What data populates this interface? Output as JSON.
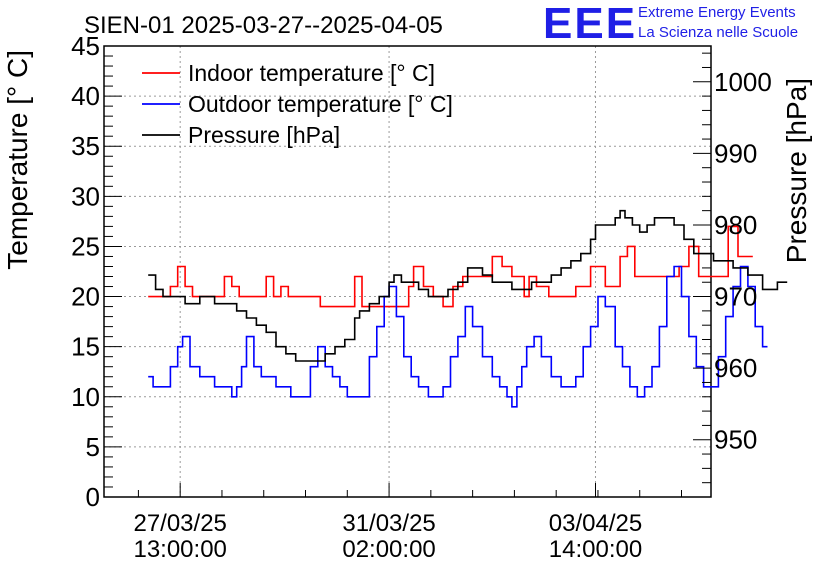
{
  "logo": {
    "mark": "EEE",
    "line1": "Extreme Energy Events",
    "line2": "La Scienza nelle Scuole",
    "color": "#1f1fe6"
  },
  "chart_data": {
    "type": "line",
    "title": "SIEN-01 2025-03-27--2025-04-05",
    "ylabel_left": "Temperature [° C]",
    "ylabel_right": "Pressure [hPa]",
    "ylim_left": [
      0,
      45
    ],
    "ylim_right": [
      942,
      1005
    ],
    "xlim_hours": [
      -18,
      229
    ],
    "grid": true,
    "legend_position": "top-left",
    "x_unit": "hours since 2025-03-27 00:00",
    "y_ticks_left": [
      0,
      5,
      10,
      15,
      20,
      25,
      30,
      35,
      40,
      45
    ],
    "y_ticks_right": [
      950,
      960,
      970,
      980,
      990,
      1000
    ],
    "x_ticks": [
      {
        "x": 13,
        "line1": "27/03/25",
        "line2": "13:00:00"
      },
      {
        "x": 98,
        "line1": "31/03/25",
        "line2": "02:00:00"
      },
      {
        "x": 182,
        "line1": "03/04/25",
        "line2": "14:00:00"
      }
    ],
    "series": [
      {
        "name": "Indoor temperature [° C]",
        "axis": "left",
        "color": "#ff0000",
        "points": [
          [
            0,
            20
          ],
          [
            6,
            20
          ],
          [
            9,
            21
          ],
          [
            12,
            23
          ],
          [
            15,
            21
          ],
          [
            18,
            20
          ],
          [
            24,
            20
          ],
          [
            28,
            20
          ],
          [
            31,
            22
          ],
          [
            34,
            21
          ],
          [
            37,
            20
          ],
          [
            45,
            20
          ],
          [
            48,
            22
          ],
          [
            51,
            20
          ],
          [
            54,
            21
          ],
          [
            57,
            20
          ],
          [
            66,
            20
          ],
          [
            70,
            19
          ],
          [
            80,
            19
          ],
          [
            84,
            22
          ],
          [
            87,
            19
          ],
          [
            95,
            19
          ],
          [
            102,
            19
          ],
          [
            106,
            21
          ],
          [
            108,
            23
          ],
          [
            112,
            21
          ],
          [
            116,
            20
          ],
          [
            120,
            19
          ],
          [
            124,
            21
          ],
          [
            128,
            22
          ],
          [
            136,
            22
          ],
          [
            140,
            24
          ],
          [
            144,
            23
          ],
          [
            148,
            22
          ],
          [
            153,
            20
          ],
          [
            155,
            22
          ],
          [
            158,
            21
          ],
          [
            163,
            20
          ],
          [
            172,
            20
          ],
          [
            174,
            21
          ],
          [
            180,
            23
          ],
          [
            186,
            21
          ],
          [
            190,
            21
          ],
          [
            192,
            24
          ],
          [
            195,
            25
          ],
          [
            198,
            22
          ],
          [
            203,
            22
          ],
          [
            210,
            22
          ],
          [
            213,
            22
          ],
          [
            216,
            23
          ],
          [
            220,
            25
          ],
          [
            224,
            22
          ],
          [
            228,
            22
          ],
          [
            232,
            22
          ],
          [
            236,
            27
          ],
          [
            240,
            24
          ],
          [
            244,
            24
          ],
          [
            246,
            24
          ]
        ]
      },
      {
        "name": "Outdoor temperature [° C]",
        "axis": "left",
        "color": "#0000ff",
        "points": [
          [
            0,
            12
          ],
          [
            2,
            11
          ],
          [
            6,
            11
          ],
          [
            9,
            13
          ],
          [
            12,
            15
          ],
          [
            14,
            16
          ],
          [
            17,
            13
          ],
          [
            21,
            12
          ],
          [
            24,
            12
          ],
          [
            27,
            11
          ],
          [
            31,
            11
          ],
          [
            34,
            10
          ],
          [
            36,
            11
          ],
          [
            38,
            13
          ],
          [
            40,
            16
          ],
          [
            43,
            13
          ],
          [
            46,
            12
          ],
          [
            50,
            12
          ],
          [
            52,
            11
          ],
          [
            56,
            11
          ],
          [
            58,
            10
          ],
          [
            62,
            10
          ],
          [
            66,
            13
          ],
          [
            69,
            15
          ],
          [
            72,
            13
          ],
          [
            75,
            12
          ],
          [
            78,
            11
          ],
          [
            81,
            10
          ],
          [
            86,
            10
          ],
          [
            90,
            14
          ],
          [
            93,
            17
          ],
          [
            96,
            20
          ],
          [
            98,
            21
          ],
          [
            101,
            18
          ],
          [
            104,
            14
          ],
          [
            107,
            12
          ],
          [
            110,
            11
          ],
          [
            114,
            10
          ],
          [
            118,
            10
          ],
          [
            120,
            11
          ],
          [
            123,
            14
          ],
          [
            126,
            16
          ],
          [
            129,
            19
          ],
          [
            132,
            17
          ],
          [
            136,
            14
          ],
          [
            140,
            12
          ],
          [
            143,
            11
          ],
          [
            146,
            10
          ],
          [
            148,
            9
          ],
          [
            150,
            11
          ],
          [
            152,
            13
          ],
          [
            154,
            15
          ],
          [
            157,
            16
          ],
          [
            160,
            14
          ],
          [
            164,
            12
          ],
          [
            168,
            11
          ],
          [
            172,
            11
          ],
          [
            174,
            12
          ],
          [
            177,
            15
          ],
          [
            180,
            17
          ],
          [
            183,
            20
          ],
          [
            186,
            19
          ],
          [
            190,
            15
          ],
          [
            193,
            13
          ],
          [
            196,
            11
          ],
          [
            199,
            10
          ],
          [
            202,
            11
          ],
          [
            205,
            13
          ],
          [
            208,
            17
          ],
          [
            211,
            22
          ],
          [
            214,
            23
          ],
          [
            217,
            20
          ],
          [
            220,
            16
          ],
          [
            223,
            13
          ],
          [
            226,
            11
          ],
          [
            229,
            11
          ],
          [
            232,
            14
          ],
          [
            235,
            18
          ],
          [
            238,
            21
          ],
          [
            241,
            23
          ],
          [
            244,
            21
          ],
          [
            247,
            17
          ],
          [
            250,
            15
          ],
          [
            252,
            15
          ]
        ]
      },
      {
        "name": "Pressure [hPa]",
        "axis": "right",
        "color": "#000000",
        "points": [
          [
            0,
            973
          ],
          [
            3,
            971
          ],
          [
            6,
            970
          ],
          [
            9,
            970
          ],
          [
            12,
            970
          ],
          [
            15,
            969
          ],
          [
            18,
            969
          ],
          [
            21,
            970
          ],
          [
            24,
            970
          ],
          [
            27,
            969
          ],
          [
            30,
            969
          ],
          [
            33,
            969
          ],
          [
            36,
            968
          ],
          [
            40,
            967
          ],
          [
            44,
            966
          ],
          [
            48,
            965
          ],
          [
            52,
            963
          ],
          [
            56,
            962
          ],
          [
            58,
            962
          ],
          [
            60,
            961
          ],
          [
            64,
            961
          ],
          [
            68,
            961
          ],
          [
            72,
            962
          ],
          [
            76,
            963
          ],
          [
            80,
            964
          ],
          [
            84,
            967
          ],
          [
            86,
            968
          ],
          [
            90,
            969
          ],
          [
            94,
            970
          ],
          [
            98,
            972
          ],
          [
            100,
            973
          ],
          [
            103,
            972
          ],
          [
            106,
            972
          ],
          [
            110,
            971
          ],
          [
            114,
            970
          ],
          [
            118,
            970
          ],
          [
            122,
            971
          ],
          [
            126,
            972
          ],
          [
            130,
            974
          ],
          [
            133,
            974
          ],
          [
            136,
            973
          ],
          [
            140,
            972
          ],
          [
            144,
            972
          ],
          [
            148,
            971
          ],
          [
            152,
            971
          ],
          [
            156,
            972
          ],
          [
            160,
            972
          ],
          [
            164,
            973
          ],
          [
            168,
            974
          ],
          [
            172,
            975
          ],
          [
            176,
            976
          ],
          [
            180,
            978
          ],
          [
            182,
            980
          ],
          [
            186,
            980
          ],
          [
            190,
            981
          ],
          [
            192,
            982
          ],
          [
            194,
            981
          ],
          [
            197,
            980
          ],
          [
            200,
            979
          ],
          [
            203,
            980
          ],
          [
            206,
            981
          ],
          [
            210,
            981
          ],
          [
            214,
            980
          ],
          [
            218,
            978
          ],
          [
            222,
            976
          ],
          [
            226,
            976
          ],
          [
            230,
            975
          ],
          [
            234,
            975
          ],
          [
            238,
            974
          ],
          [
            242,
            974
          ],
          [
            244,
            973
          ],
          [
            247,
            973
          ],
          [
            250,
            971
          ],
          [
            252,
            971
          ],
          [
            256,
            972
          ],
          [
            260,
            972
          ]
        ]
      }
    ]
  }
}
